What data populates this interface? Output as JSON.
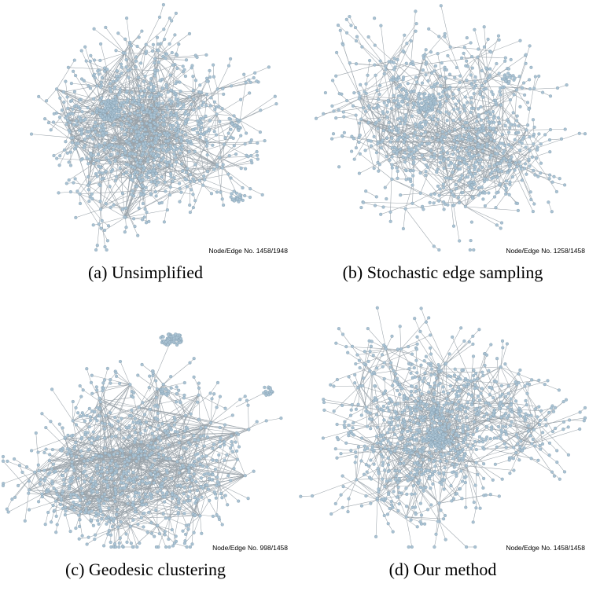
{
  "colors": {
    "node_fill": "#a9c2d3",
    "node_stroke": "#8099ab",
    "edge": "#9aa3aa"
  },
  "panels": [
    {
      "caption": "(a) Unsimplified",
      "stat": "Node/Edge No. 1458/1948"
    },
    {
      "caption": "(b) Stochastic edge sampling",
      "stat": "Node/Edge No. 1258/1458"
    },
    {
      "caption": "(c) Geodesic clustering",
      "stat": "Node/Edge No. 998/1458"
    },
    {
      "caption": "(d) Our method",
      "stat": "Node/Edge No. 1458/1458"
    }
  ]
}
